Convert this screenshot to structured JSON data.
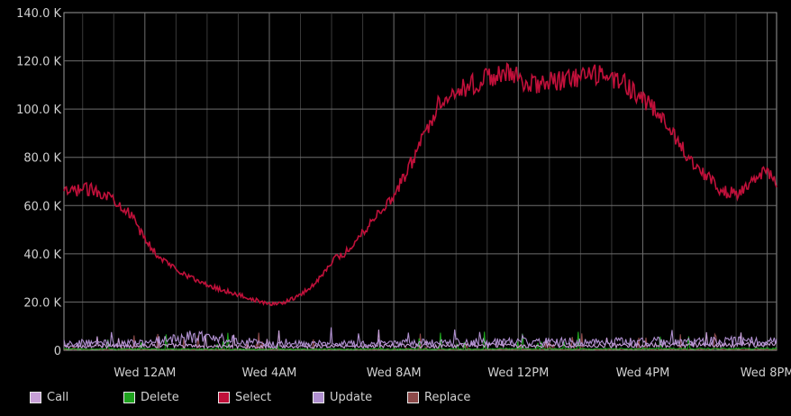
{
  "chart_data": {
    "type": "line",
    "title": "",
    "xlabel": "",
    "ylabel": "",
    "ylim": [
      0,
      140000
    ],
    "yticks": [
      {
        "value": 0,
        "label": "0"
      },
      {
        "value": 20000,
        "label": "20.0 K"
      },
      {
        "value": 40000,
        "label": "40.0 K"
      },
      {
        "value": 60000,
        "label": "60.0 K"
      },
      {
        "value": 80000,
        "label": "80.0 K"
      },
      {
        "value": 100000,
        "label": "100.0 K"
      },
      {
        "value": 120000,
        "label": "120.0 K"
      },
      {
        "value": 140000,
        "label": "140.0 K"
      }
    ],
    "xlim_hours": [
      -2.6,
      20.3
    ],
    "xticks": [
      {
        "hour": 0,
        "label": "Wed 12AM"
      },
      {
        "hour": 4,
        "label": "Wed  4AM"
      },
      {
        "hour": 8,
        "label": "Wed  8AM"
      },
      {
        "hour": 12,
        "label": "Wed 12PM"
      },
      {
        "hour": 16,
        "label": "Wed  4PM"
      },
      {
        "hour": 20,
        "label": "Wed  8PM"
      }
    ],
    "grid": true,
    "legend_position": "bottom-left",
    "series": [
      {
        "name": "Call",
        "color": "#c8a0d8",
        "x": [
          -2.6,
          0,
          4,
          8,
          12,
          16,
          20.3
        ],
        "values": [
          1500,
          2000,
          1500,
          1800,
          2000,
          2000,
          2500
        ]
      },
      {
        "name": "Delete",
        "color": "#1fa31f",
        "x": [
          -2.6,
          0,
          4,
          8,
          12,
          16,
          20.3
        ],
        "values": [
          500,
          500,
          400,
          500,
          600,
          600,
          700
        ]
      },
      {
        "name": "Select",
        "color": "#c0103a",
        "x": [
          -2.6,
          -2.0,
          -1.5,
          -1.0,
          -0.5,
          0,
          0.5,
          1.0,
          1.5,
          2.0,
          2.5,
          3.0,
          3.5,
          4.0,
          4.5,
          5.0,
          5.5,
          6.0,
          6.5,
          7.0,
          7.5,
          8.0,
          8.5,
          9.0,
          9.5,
          10.0,
          10.5,
          11.0,
          11.5,
          12.0,
          12.5,
          13.0,
          13.5,
          14.0,
          14.5,
          15.0,
          15.5,
          16.0,
          16.5,
          17.0,
          17.5,
          18.0,
          18.5,
          19.0,
          19.5,
          20.0,
          20.3
        ],
        "values": [
          65000,
          67000,
          66000,
          63000,
          57000,
          46000,
          38000,
          34000,
          30000,
          27000,
          25000,
          23000,
          21000,
          19000,
          20000,
          23000,
          28000,
          37000,
          41000,
          49000,
          57000,
          64000,
          76000,
          90000,
          104000,
          108000,
          110000,
          113000,
          115000,
          113000,
          110000,
          111000,
          112000,
          113000,
          114000,
          113000,
          110000,
          104000,
          98000,
          89000,
          80000,
          73000,
          66000,
          65000,
          70000,
          74000,
          68000
        ]
      },
      {
        "name": "Update",
        "color": "#b090d0",
        "x": [
          -2.6,
          0,
          1.5,
          3,
          4,
          8,
          12,
          16,
          20.3
        ],
        "values": [
          3000,
          3000,
          5500,
          4000,
          2500,
          3000,
          3500,
          3500,
          4000
        ]
      },
      {
        "name": "Replace",
        "color": "#8c4a4a",
        "x": [
          -2.6,
          0,
          4,
          8,
          12,
          16,
          20.3
        ],
        "values": [
          300,
          300,
          300,
          300,
          300,
          300,
          300
        ]
      }
    ]
  }
}
